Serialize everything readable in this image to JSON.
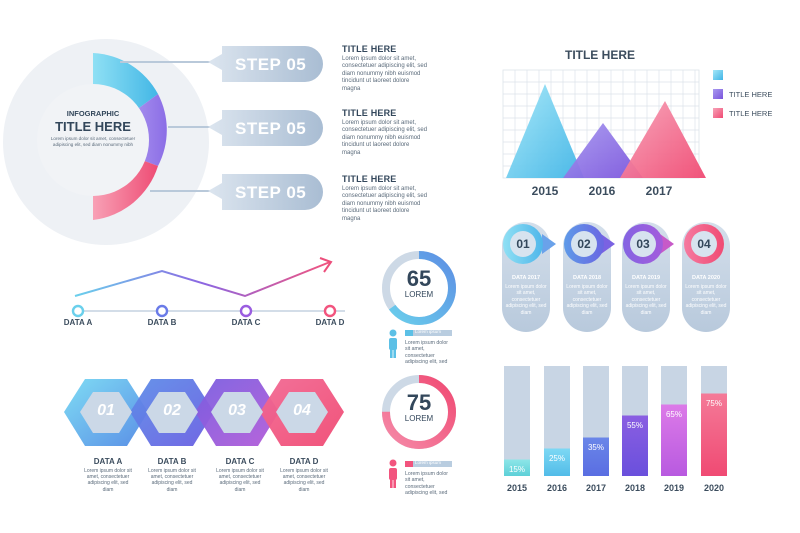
{
  "colors": {
    "cyan": "#52c6e8",
    "blue": "#6a7be8",
    "purple": "#9a5de0",
    "pink": "#f2547e",
    "gray": "#c8d5e4",
    "grayText": "#3c4d5e"
  },
  "lorem": {
    "three_lines": "Lorem ipsum dolor sit amet, consectetuer adipiscing elit, sed diam nonummy nibh euismod tincidunt ut laoreet dolore magna",
    "short": "Lorem ipsum dolor sit amet, consectetuer adipiscing elit, sed",
    "tiny": "Lorem ipsum dolor sit amet, consectetuer adipiscing elit, sed diam",
    "label_bar": "Lorem ipsum"
  },
  "infographic_circle": {
    "subtitle": "INFOGRAPHIC",
    "title": "TITLE HERE",
    "body": "Lorem ipsum dolor sit amet, consectetuer adipiscing elit, sed diam nonummy nibh"
  },
  "steps": [
    {
      "label": "STEP 05",
      "title": "TITLE HERE",
      "body": "Lorem ipsum dolor sit amet, consectetuer adipiscing elit, sed diam nonummy nibh euismod tincidunt ut laoreet dolore magna"
    },
    {
      "label": "STEP 05",
      "title": "TITLE HERE",
      "body": "Lorem ipsum dolor sit amet, consectetuer adipiscing elit, sed diam nonummy nibh euismod tincidunt ut laoreet dolore magna"
    },
    {
      "label": "STEP 05",
      "title": "TITLE HERE",
      "body": "Lorem ipsum dolor sit amet, consectetuer adipiscing elit, sed diam nonummy nibh euismod tincidunt ut laoreet dolore magna"
    }
  ],
  "triangle_chart": {
    "title": "TITLE HERE",
    "legend": [
      "",
      "TITLE HERE",
      "TITLE HERE"
    ],
    "categories": [
      "2015",
      "2016",
      "2017"
    ]
  },
  "line_chart": {
    "labels": [
      "DATA A",
      "DATA B",
      "DATA C",
      "DATA D"
    ]
  },
  "donuts": [
    {
      "value": "65",
      "label": "LOREM",
      "percent": 65
    },
    {
      "value": "75",
      "label": "LOREM",
      "percent": 75
    }
  ],
  "hexagons": {
    "items": [
      {
        "num": "01",
        "label": "DATA A"
      },
      {
        "num": "02",
        "label": "DATA B"
      },
      {
        "num": "03",
        "label": "DATA C"
      },
      {
        "num": "04",
        "label": "DATA D"
      }
    ]
  },
  "timeline": {
    "items": [
      {
        "num": "01",
        "title": "DATA 2017"
      },
      {
        "num": "02",
        "title": "DATA 2018"
      },
      {
        "num": "03",
        "title": "DATA 2019"
      },
      {
        "num": "04",
        "title": "DATA 2020"
      }
    ]
  },
  "chart_data": {
    "type": "bar",
    "categories": [
      "2015",
      "2016",
      "2017",
      "2018",
      "2019",
      "2020"
    ],
    "values": [
      15,
      25,
      35,
      55,
      65,
      75
    ],
    "value_labels": [
      "15%",
      "25%",
      "35%",
      "55%",
      "65%",
      "75%"
    ],
    "ylim": [
      0,
      100
    ]
  }
}
